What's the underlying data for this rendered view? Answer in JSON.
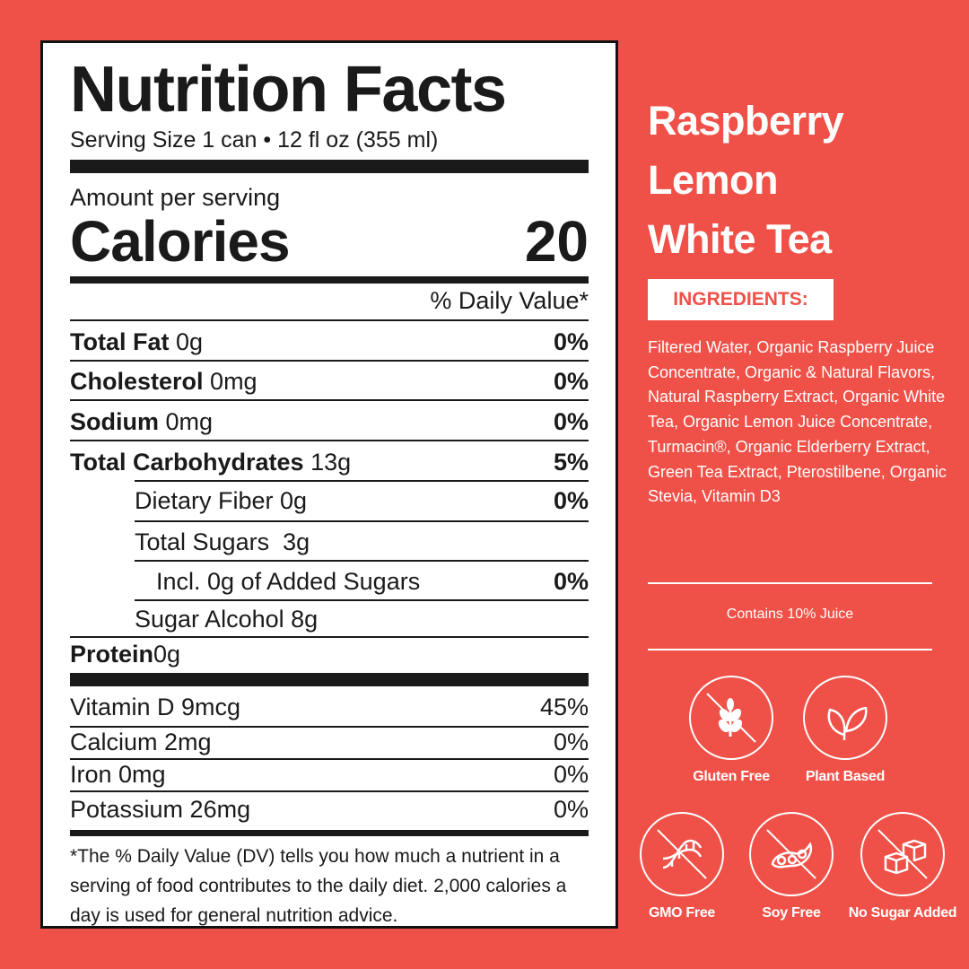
{
  "nutrition": {
    "title": "Nutrition Facts",
    "serving": "Serving Size 1 can • 12 fl oz (355 ml)",
    "amount_per_serving": "Amount per serving",
    "calories_label": "Calories",
    "calories_value": "20",
    "daily_value_header": "% Daily Value*",
    "rows": [
      {
        "name": "Total Fat",
        "amount": "0g",
        "dv": "0%"
      },
      {
        "name": "Cholesterol",
        "amount": "0mg",
        "dv": "0%"
      },
      {
        "name": "Sodium",
        "amount": "0mg",
        "dv": "0%"
      },
      {
        "name": "Total Carbohydrates",
        "amount": "13g",
        "dv": "5%"
      },
      {
        "text": "Dietary Fiber 0g",
        "dv": "0%"
      },
      {
        "text": "Total Sugars  3g",
        "dv": ""
      },
      {
        "text": "Incl. 0g of Added Sugars",
        "dv": "0%"
      },
      {
        "text": "Sugar Alcohol 8g",
        "dv": ""
      },
      {
        "name": "Protein",
        "amount": "0g",
        "dv": ""
      }
    ],
    "vitamins": [
      {
        "text": "Vitamin D 9mcg",
        "dv": "45%"
      },
      {
        "text": "Calcium 2mg",
        "dv": "0%"
      },
      {
        "text": "Iron 0mg",
        "dv": "0%"
      },
      {
        "text": "Potassium 26mg",
        "dv": "0%"
      }
    ],
    "footnote": "*The % Daily Value (DV) tells you how much a nutrient in a serving of food contributes to the daily diet. 2,000 calories a day is used for general nutrition advice."
  },
  "product": {
    "name_lines": [
      "Raspberry",
      "Lemon",
      "White Tea"
    ],
    "ingredients_label": "INGREDIENTS:",
    "ingredients": "Filtered Water, Organic Raspberry Juice Concentrate, Organic & Natural Flavors, Natural Raspberry Extract, Organic White Tea, Organic Lemon Juice Concentrate, Turmacin®, Organic Elderberry Extract, Green Tea Extract, Pterostilbene, Organic Stevia, Vitamin D3",
    "juice_note": "Contains 10% Juice"
  },
  "badges": [
    {
      "label": "Gluten Free",
      "icon": "wheat-icon"
    },
    {
      "label": "Plant Based",
      "icon": "leaf-icon"
    },
    {
      "label": "GMO Free",
      "icon": "dna-icon"
    },
    {
      "label": "Soy Free",
      "icon": "soybean-icon"
    },
    {
      "label": "No Sugar Added",
      "icon": "sugar-cubes-icon"
    }
  ],
  "colors": {
    "background": "#EF5148",
    "panel": "#FFFFFF",
    "text": "#1A1A1A"
  }
}
